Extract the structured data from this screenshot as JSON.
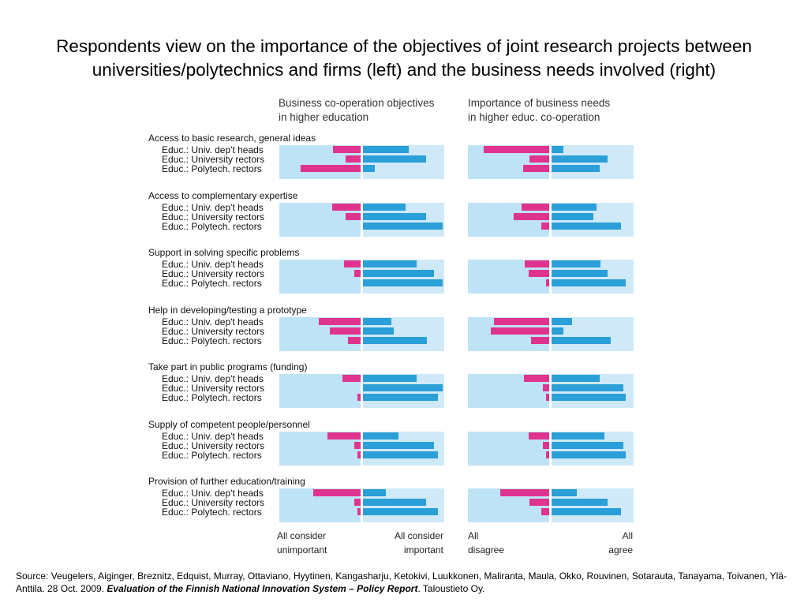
{
  "title": "Respondents view on the importance of the objectives of joint research projects between universities/polytechnics and firms (left) and the business needs involved (right)",
  "chart_data": {
    "type": "bar",
    "orientation": "horizontal-diverging",
    "colors": {
      "negative": "#e0338f",
      "positive": "#2a9fd8",
      "panel": "#cfe9f8"
    },
    "series_labels": [
      "Educ.: Univ. dep't heads",
      "Educ.: University rectors",
      "Educ.: Polytech. rectors"
    ],
    "panels": [
      {
        "heading": [
          "Business co-operation objectives",
          "in higher education"
        ],
        "axis_left": [
          "All consider",
          "unimportant"
        ],
        "axis_right": [
          "All consider",
          "important"
        ]
      },
      {
        "heading": [
          "Importance of business needs",
          "in higher educ. co-operation"
        ],
        "axis_left": [
          "All",
          "disagree"
        ],
        "axis_right": [
          "All",
          "agree"
        ]
      }
    ],
    "groups": [
      {
        "label": "Access to basic research, general ideas",
        "left": {
          "neg": [
            0.35,
            0.19,
            0.75
          ],
          "pos": [
            0.57,
            0.78,
            0.15
          ]
        },
        "right": {
          "neg": [
            0.82,
            0.25,
            0.33
          ],
          "pos": [
            0.15,
            0.69,
            0.59
          ]
        }
      },
      {
        "label": "Access to complementary expertise",
        "left": {
          "neg": [
            0.36,
            0.19,
            0.0
          ],
          "pos": [
            0.53,
            0.78,
            0.99
          ]
        },
        "right": {
          "neg": [
            0.35,
            0.45,
            0.1
          ],
          "pos": [
            0.55,
            0.51,
            0.85
          ]
        }
      },
      {
        "label": "Support in solving specific problems",
        "left": {
          "neg": [
            0.21,
            0.08,
            0.0
          ],
          "pos": [
            0.67,
            0.88,
            0.99
          ]
        },
        "right": {
          "neg": [
            0.31,
            0.26,
            0.04
          ],
          "pos": [
            0.6,
            0.69,
            0.91
          ]
        }
      },
      {
        "label": "Help in developing/testing a prototype",
        "left": {
          "neg": [
            0.52,
            0.39,
            0.16
          ],
          "pos": [
            0.35,
            0.38,
            0.79
          ]
        },
        "right": {
          "neg": [
            0.69,
            0.73,
            0.23
          ],
          "pos": [
            0.25,
            0.15,
            0.73
          ]
        }
      },
      {
        "label": "Take part in public programs (funding)",
        "left": {
          "neg": [
            0.23,
            0.0,
            0.04
          ],
          "pos": [
            0.67,
            0.99,
            0.93
          ]
        },
        "right": {
          "neg": [
            0.32,
            0.08,
            0.04
          ],
          "pos": [
            0.59,
            0.88,
            0.91
          ]
        }
      },
      {
        "label": "Supply of competent people/personnel",
        "left": {
          "neg": [
            0.42,
            0.08,
            0.04
          ],
          "pos": [
            0.44,
            0.88,
            0.93
          ]
        },
        "right": {
          "neg": [
            0.26,
            0.08,
            0.04
          ],
          "pos": [
            0.65,
            0.88,
            0.91
          ]
        }
      },
      {
        "label": "Provision of further education/training",
        "left": {
          "neg": [
            0.59,
            0.08,
            0.04
          ],
          "pos": [
            0.28,
            0.78,
            0.93
          ]
        },
        "right": {
          "neg": [
            0.61,
            0.25,
            0.1
          ],
          "pos": [
            0.31,
            0.69,
            0.85
          ]
        }
      }
    ]
  },
  "source": {
    "prefix": "Source: Veugelers, Aiginger, Breznitz, Edquist, Murray, Ottaviano, Hyytinen, Kangasharju, Ketokivi, Luukkonen, Maliranta, Maula, Okko, Rouvinen, Sotarauta, Tanayama, Toivanen, Ylä-Anttila. 28 Oct. 2009.",
    "report": "Evaluation of the Finnish National Innovation System – Policy Report",
    "suffix": ". Taloustieto Oy."
  }
}
